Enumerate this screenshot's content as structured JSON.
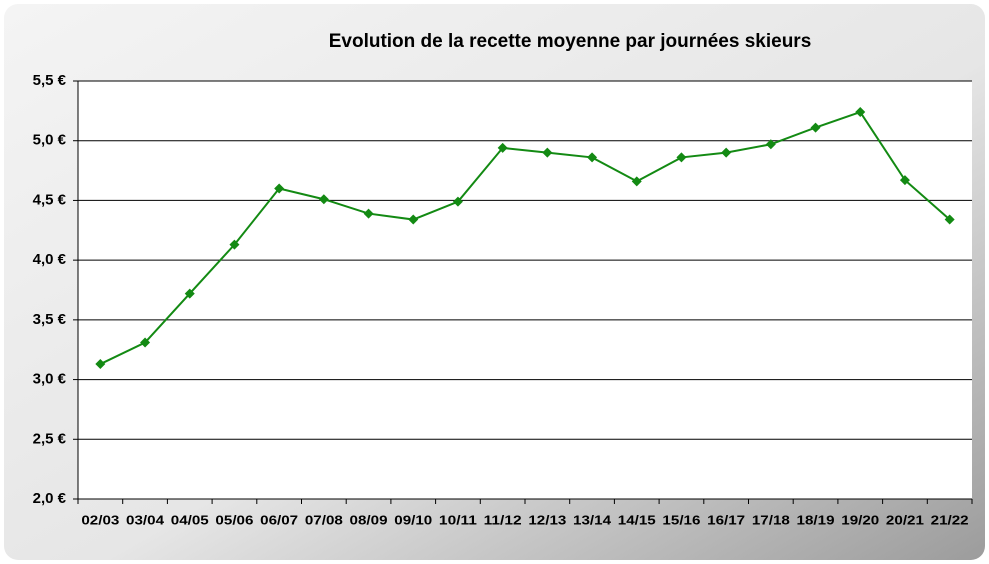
{
  "chart_data": {
    "type": "line",
    "title": "Evolution de la recette moyenne par journées skieurs",
    "categories": [
      "02/03",
      "03/04",
      "04/05",
      "05/06",
      "06/07",
      "07/08",
      "08/09",
      "09/10",
      "10/11",
      "11/12",
      "12/13",
      "13/14",
      "14/15",
      "15/16",
      "16/17",
      "17/18",
      "18/19",
      "19/20",
      "20/21",
      "21/22"
    ],
    "series": [
      {
        "color": "#138a13",
        "values": [
          3.13,
          3.31,
          3.72,
          4.13,
          4.6,
          4.51,
          4.39,
          4.34,
          4.49,
          4.94,
          4.9,
          4.86,
          4.66,
          4.86,
          4.9,
          4.97,
          5.11,
          5.24,
          4.67,
          4.34
        ]
      }
    ],
    "ylim": [
      2.0,
      5.5
    ],
    "yticks": [
      {
        "value": 2.0,
        "label": "2,0 €"
      },
      {
        "value": 2.5,
        "label": "2,5 €"
      },
      {
        "value": 3.0,
        "label": "3,0 €"
      },
      {
        "value": 3.5,
        "label": "3,5 €"
      },
      {
        "value": 4.0,
        "label": "4,0 €"
      },
      {
        "value": 4.5,
        "label": "4,5 €"
      },
      {
        "value": 5.0,
        "label": "5,0 €"
      },
      {
        "value": 5.5,
        "label": "5,5 €"
      }
    ],
    "grid": true
  }
}
